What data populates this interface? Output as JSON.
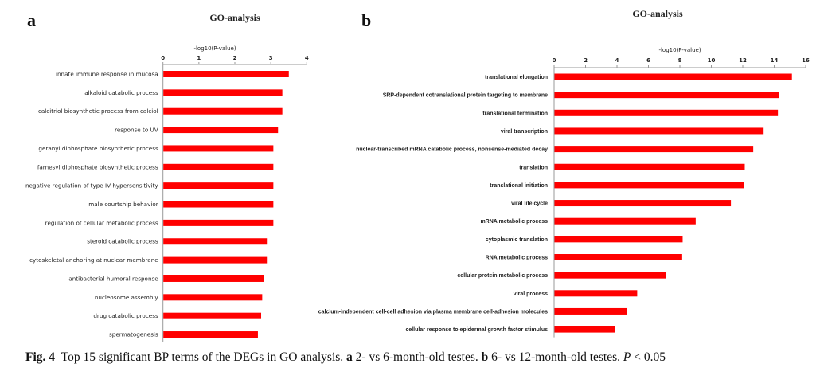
{
  "chart_data": [
    {
      "panel": "a",
      "type": "bar",
      "orientation": "horizontal",
      "title": "GO-analysis",
      "xlabel": "-log10(P-value)",
      "ylabel": "",
      "xlim": [
        0,
        4
      ],
      "xticks": [
        "0",
        "1",
        "2",
        "3",
        "4"
      ],
      "bar_color": "#ff0000",
      "categories": [
        "innate immune response in mucosa",
        "alkaloid catabolic process",
        "calcitriol biosynthetic process from calciol",
        "response to UV",
        "geranyl diphosphate biosynthetic process",
        "farnesyl diphosphate biosynthetic process",
        "negative regulation of type IV hypersensitivity",
        "male courtship behavior",
        "regulation of cellular metabolic process",
        "steroid catabolic process",
        "cytoskeletal anchoring at nuclear membrane",
        "antibacterial humoral response",
        "nucleosome assembly",
        "drug catabolic process",
        "spermatogenesis"
      ],
      "values": [
        3.49,
        3.31,
        3.31,
        3.19,
        3.06,
        3.06,
        3.06,
        3.06,
        3.06,
        2.88,
        2.88,
        2.79,
        2.75,
        2.72,
        2.63
      ]
    },
    {
      "panel": "b",
      "type": "bar",
      "orientation": "horizontal",
      "title": "GO-analysis",
      "xlabel": "-log10(P-value)",
      "ylabel": "",
      "xlim": [
        0,
        16
      ],
      "xticks": [
        "0",
        "2",
        "4",
        "6",
        "8",
        "10",
        "12",
        "14",
        "16"
      ],
      "bar_color": "#ff0000",
      "categories": [
        "translational elongation",
        "SRP-dependent cotranslational protein targeting to membrane",
        "translational termination",
        "viral transcription",
        "nuclear-transcribed mRNA catabolic process, nonsense-mediated decay",
        "translation",
        "translational initiation",
        "viral life cycle",
        "mRNA metabolic process",
        "cytoplasmic translation",
        "RNA metabolic process",
        "cellular protein metabolic process",
        "viral process",
        "calcium-independent cell-cell adhesion via plasma membrane cell-adhesion molecules",
        "cellular response to epidermal growth factor stimulus"
      ],
      "values": [
        15.1,
        14.26,
        14.21,
        13.3,
        12.64,
        12.1,
        12.07,
        11.22,
        8.98,
        8.15,
        8.12,
        7.09,
        5.26,
        4.63,
        3.87
      ]
    }
  ],
  "panels": {
    "a_letter": "a",
    "b_letter": "b"
  },
  "caption": {
    "fig_label": "Fig. 4",
    "text1": "Top 15 significant BP terms of the DEGs in GO analysis.",
    "a_letter": "a",
    "text2": "2- vs 6-month-old testes.",
    "b_letter": "b",
    "text3": "6- vs 12-month-old testes.",
    "p_symbol": "P",
    "text4": "< 0.05"
  }
}
